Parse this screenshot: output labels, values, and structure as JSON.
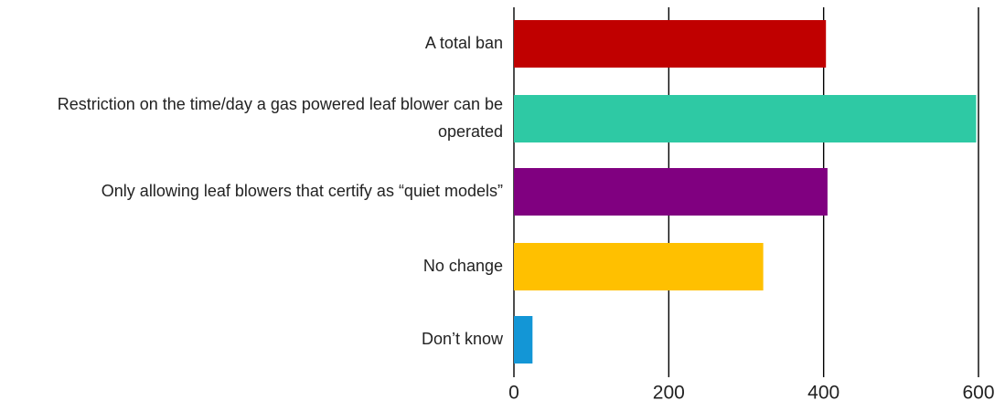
{
  "chart_data": {
    "type": "bar",
    "orientation": "horizontal",
    "title": "",
    "xlabel": "",
    "ylabel": "",
    "categories": [
      [
        "A total ban"
      ],
      [
        "Restriction on the time/day a gas powered leaf blower can be",
        "operated"
      ],
      [
        "Only allowing leaf blowers that certify as “quiet models”"
      ],
      [
        "No change"
      ],
      [
        "Don’t know"
      ]
    ],
    "values": [
      403,
      597,
      405,
      322,
      24
    ],
    "colors": [
      "#c00000",
      "#2ec9a4",
      "#800080",
      "#ffc000",
      "#1396d6"
    ],
    "xlim": [
      0,
      600
    ],
    "xticks": [
      0,
      200,
      400,
      600
    ],
    "grid": "vertical",
    "legend": "none"
  }
}
